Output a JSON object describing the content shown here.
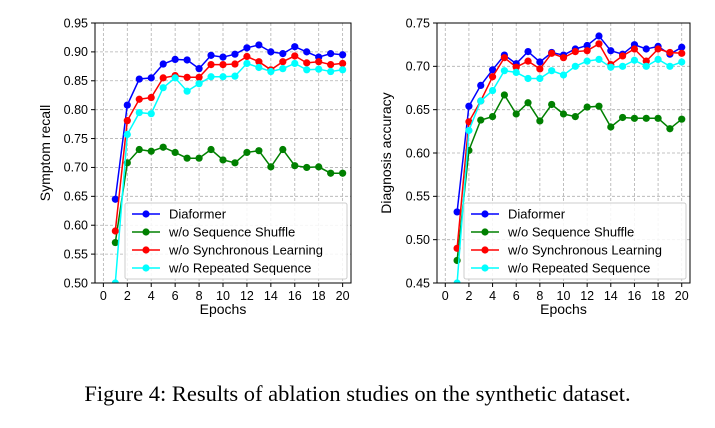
{
  "caption": "Figure 4: Results of ablation studies on the synthetic dataset.",
  "chart_data": [
    {
      "type": "line",
      "xlabel": "Epochs",
      "ylabel": "Symptom recall",
      "xlim": [
        -0.7,
        20.7
      ],
      "ylim": [
        0.5,
        0.95
      ],
      "xticks": [
        "0",
        "2",
        "4",
        "6",
        "8",
        "10",
        "12",
        "14",
        "16",
        "18",
        "20"
      ],
      "yticks": [
        "0.50",
        "0.55",
        "0.60",
        "0.65",
        "0.70",
        "0.75",
        "0.80",
        "0.85",
        "0.90",
        "0.95"
      ],
      "grid": true,
      "legend_position": "lower-right",
      "x": [
        1,
        2,
        3,
        4,
        5,
        6,
        7,
        8,
        9,
        10,
        11,
        12,
        13,
        14,
        15,
        16,
        17,
        18,
        19,
        20
      ],
      "series": [
        {
          "name": "Diaformer",
          "color": "#0000ff",
          "values": [
            0.645,
            0.808,
            0.853,
            0.855,
            0.879,
            0.887,
            0.886,
            0.871,
            0.894,
            0.891,
            0.896,
            0.907,
            0.912,
            0.9,
            0.897,
            0.909,
            0.9,
            0.891,
            0.897,
            0.895
          ]
        },
        {
          "name": "w/o Sequence Shuffle",
          "color": "#008000",
          "values": [
            0.57,
            0.708,
            0.731,
            0.728,
            0.735,
            0.726,
            0.716,
            0.716,
            0.731,
            0.713,
            0.708,
            0.726,
            0.729,
            0.701,
            0.731,
            0.703,
            0.7,
            0.701,
            0.69,
            0.69
          ]
        },
        {
          "name": "w/o Synchronous Learning",
          "color": "#ff0000",
          "values": [
            0.59,
            0.781,
            0.818,
            0.821,
            0.855,
            0.859,
            0.856,
            0.856,
            0.878,
            0.878,
            0.879,
            0.892,
            0.883,
            0.869,
            0.883,
            0.893,
            0.881,
            0.883,
            0.878,
            0.88
          ]
        },
        {
          "name": "w/o Repeated Sequence",
          "color": "#00ffff",
          "values": [
            0.5,
            0.757,
            0.795,
            0.793,
            0.838,
            0.855,
            0.832,
            0.845,
            0.857,
            0.857,
            0.858,
            0.88,
            0.873,
            0.866,
            0.871,
            0.88,
            0.869,
            0.87,
            0.866,
            0.869
          ]
        }
      ]
    },
    {
      "type": "line",
      "xlabel": "Epochs",
      "ylabel": "Diagnosis accuracy",
      "xlim": [
        -0.7,
        20.7
      ],
      "ylim": [
        0.45,
        0.75
      ],
      "xticks": [
        "0",
        "2",
        "4",
        "6",
        "8",
        "10",
        "12",
        "14",
        "16",
        "18",
        "20"
      ],
      "yticks": [
        "0.45",
        "0.50",
        "0.55",
        "0.60",
        "0.65",
        "0.70",
        "0.75"
      ],
      "grid": true,
      "legend_position": "lower-right",
      "x": [
        1,
        2,
        3,
        4,
        5,
        6,
        7,
        8,
        9,
        10,
        11,
        12,
        13,
        14,
        15,
        16,
        17,
        18,
        19,
        20
      ],
      "series": [
        {
          "name": "Diaformer",
          "color": "#0000ff",
          "values": [
            0.532,
            0.654,
            0.678,
            0.696,
            0.713,
            0.703,
            0.717,
            0.705,
            0.716,
            0.713,
            0.72,
            0.724,
            0.735,
            0.718,
            0.714,
            0.725,
            0.72,
            0.723,
            0.714,
            0.722
          ]
        },
        {
          "name": "w/o Sequence Shuffle",
          "color": "#008000",
          "values": [
            0.476,
            0.603,
            0.638,
            0.642,
            0.667,
            0.645,
            0.658,
            0.637,
            0.656,
            0.645,
            0.642,
            0.653,
            0.654,
            0.63,
            0.641,
            0.64,
            0.64,
            0.64,
            0.628,
            0.639
          ]
        },
        {
          "name": "w/o Synchronous Learning",
          "color": "#ff0000",
          "values": [
            0.49,
            0.636,
            0.66,
            0.688,
            0.71,
            0.699,
            0.706,
            0.697,
            0.715,
            0.71,
            0.717,
            0.718,
            0.726,
            0.702,
            0.712,
            0.72,
            0.706,
            0.72,
            0.716,
            0.715
          ]
        },
        {
          "name": "w/o Repeated Sequence",
          "color": "#00ffff",
          "values": [
            0.45,
            0.626,
            0.66,
            0.672,
            0.695,
            0.693,
            0.686,
            0.686,
            0.695,
            0.69,
            0.7,
            0.706,
            0.708,
            0.699,
            0.7,
            0.707,
            0.7,
            0.708,
            0.7,
            0.705
          ]
        }
      ]
    }
  ]
}
